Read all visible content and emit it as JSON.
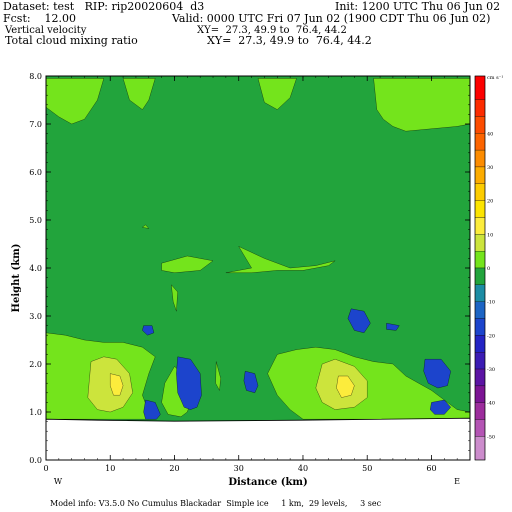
{
  "header": {
    "dataset": "Dataset: test   RIP: rip20020604  d3",
    "init": "Init: 1200 UTC Thu 06 Jun 02",
    "fcst": "Fcst:    12.00",
    "valid": "Valid: 0000 UTC Fri 07 Jun 02 (1900 CDT Thu 06 Jun 02)",
    "field1": "Vertical velocity",
    "field1_xy": "XY=  27.3, 49.9 to  76.4, 44.2",
    "field2": "Total cloud mixing ratio",
    "field2_xy": "XY=  27.3, 49.9 to  76.4, 44.2"
  },
  "footer": "Model info: V3.5.0 No Cumulus Blackadar  Simple ice     1 km,  29 levels,     3 sec",
  "colors": {
    "background_field": "#22a43c",
    "light_green": "#74e41c",
    "yellow_green": "#cce43c",
    "yellow": "#fcec3c",
    "blue": "#1c44cc",
    "terrain": "#ffffff"
  },
  "chart_data": {
    "type": "heatmap",
    "xlabel": "Distance (km)",
    "ylabel": "Height (km)",
    "xlim": [
      0,
      66
    ],
    "ylim": [
      0,
      8
    ],
    "x_ticks": [
      "0",
      "10",
      "20",
      "30",
      "40",
      "50",
      "60"
    ],
    "y_ticks": [
      "0.0",
      "1.0",
      "2.0",
      "3.0",
      "4.0",
      "5.0",
      "6.0",
      "7.0",
      "8.0"
    ],
    "x_end_labels": {
      "left": "W",
      "right": "E"
    },
    "colorbar": {
      "unit": "cm s⁻¹",
      "tick_labels": [
        "40",
        "30",
        "20",
        "10",
        "0",
        "-10",
        "-20",
        "-30",
        "-40",
        "-50"
      ],
      "tick_values": [
        40,
        30,
        20,
        10,
        0,
        -10,
        -20,
        -30,
        -40,
        -50
      ],
      "range": [
        -57,
        57
      ],
      "bands": [
        {
          "from": 50,
          "to": 57,
          "color": "#fc0000"
        },
        {
          "from": 45,
          "to": 50,
          "color": "#fc2c00"
        },
        {
          "from": 40,
          "to": 45,
          "color": "#fc4c00"
        },
        {
          "from": 35,
          "to": 40,
          "color": "#fc6400"
        },
        {
          "from": 30,
          "to": 35,
          "color": "#fc8c00"
        },
        {
          "from": 25,
          "to": 30,
          "color": "#fcac00"
        },
        {
          "from": 20,
          "to": 25,
          "color": "#fccc00"
        },
        {
          "from": 15,
          "to": 20,
          "color": "#fce400"
        },
        {
          "from": 10,
          "to": 15,
          "color": "#fcec3c"
        },
        {
          "from": 5,
          "to": 10,
          "color": "#cce43c"
        },
        {
          "from": 0,
          "to": 5,
          "color": "#74e41c"
        },
        {
          "from": -5,
          "to": 0,
          "color": "#22a43c"
        },
        {
          "from": -10,
          "to": -5,
          "color": "#1c8ca4"
        },
        {
          "from": -15,
          "to": -10,
          "color": "#1c64c4"
        },
        {
          "from": -20,
          "to": -15,
          "color": "#1c44cc"
        },
        {
          "from": -25,
          "to": -20,
          "color": "#2424c4"
        },
        {
          "from": -30,
          "to": -25,
          "color": "#3c1cb4"
        },
        {
          "from": -35,
          "to": -30,
          "color": "#5c14a4"
        },
        {
          "from": -40,
          "to": -35,
          "color": "#7c1494"
        },
        {
          "from": -45,
          "to": -40,
          "color": "#9c2c9c"
        },
        {
          "from": -50,
          "to": -45,
          "color": "#b454b4"
        },
        {
          "from": -57,
          "to": -50,
          "color": "#cc8ccc"
        }
      ]
    },
    "terrain_height_km": 0.85,
    "regions": [
      {
        "level": "light_green",
        "pts": [
          [
            0,
            7.95
          ],
          [
            0,
            7.35
          ],
          [
            2,
            7.15
          ],
          [
            4,
            7.0
          ],
          [
            6,
            7.1
          ],
          [
            8,
            7.5
          ],
          [
            9,
            7.95
          ]
        ]
      },
      {
        "level": "light_green",
        "pts": [
          [
            33,
            7.95
          ],
          [
            34,
            7.45
          ],
          [
            36,
            7.3
          ],
          [
            38,
            7.55
          ],
          [
            39,
            7.95
          ]
        ]
      },
      {
        "level": "light_green",
        "pts": [
          [
            12,
            7.95
          ],
          [
            13,
            7.5
          ],
          [
            15,
            7.3
          ],
          [
            16,
            7.5
          ],
          [
            17,
            7.95
          ]
        ]
      },
      {
        "level": "light_green",
        "pts": [
          [
            51,
            7.95
          ],
          [
            51.5,
            7.3
          ],
          [
            52.5,
            7.1
          ],
          [
            54,
            6.95
          ],
          [
            56,
            6.85
          ],
          [
            60,
            6.9
          ],
          [
            64,
            6.95
          ],
          [
            66,
            7.0
          ],
          [
            66,
            7.95
          ]
        ]
      },
      {
        "level": "light_green",
        "pts": [
          [
            15,
            4.85
          ],
          [
            15.5,
            4.9
          ],
          [
            16,
            4.82
          ]
        ]
      },
      {
        "level": "light_green",
        "pts": [
          [
            30,
            4.45
          ],
          [
            34,
            4.2
          ],
          [
            38,
            4.0
          ],
          [
            42,
            4.05
          ],
          [
            45,
            4.15
          ],
          [
            44,
            4.05
          ],
          [
            40,
            3.95
          ],
          [
            36,
            3.95
          ],
          [
            32,
            3.9
          ],
          [
            29,
            3.9
          ],
          [
            28,
            3.9
          ],
          [
            32,
            4.0
          ]
        ]
      },
      {
        "level": "light_green",
        "pts": [
          [
            18,
            4.1
          ],
          [
            22,
            4.25
          ],
          [
            26,
            4.15
          ],
          [
            24,
            3.95
          ],
          [
            20,
            3.9
          ],
          [
            18,
            3.95
          ]
        ]
      },
      {
        "level": "light_green",
        "pts": [
          [
            19.5,
            3.65
          ],
          [
            20.5,
            3.5
          ],
          [
            20.3,
            3.1
          ],
          [
            19.8,
            3.3
          ]
        ]
      },
      {
        "level": "light_green",
        "pts": [
          [
            0,
            2.65
          ],
          [
            3,
            2.6
          ],
          [
            6,
            2.5
          ],
          [
            9,
            2.45
          ],
          [
            12,
            2.45
          ],
          [
            15,
            2.35
          ],
          [
            17,
            2.15
          ],
          [
            16,
            1.8
          ],
          [
            15,
            1.35
          ],
          [
            16,
            1.0
          ],
          [
            17,
            0.85
          ],
          [
            0,
            0.85
          ]
        ]
      },
      {
        "level": "light_green",
        "pts": [
          [
            20,
            1.95
          ],
          [
            22,
            1.7
          ],
          [
            23,
            1.4
          ],
          [
            22,
            1.0
          ],
          [
            21,
            0.9
          ],
          [
            19,
            0.95
          ],
          [
            18,
            1.2
          ],
          [
            18.5,
            1.6
          ]
        ]
      },
      {
        "level": "light_green",
        "pts": [
          [
            26.5,
            2.05
          ],
          [
            27.2,
            1.7
          ],
          [
            27.0,
            1.45
          ],
          [
            26.4,
            1.6
          ]
        ]
      },
      {
        "level": "light_green",
        "pts": [
          [
            36,
            2.2
          ],
          [
            39,
            2.3
          ],
          [
            42,
            2.35
          ],
          [
            45,
            2.3
          ],
          [
            48,
            2.15
          ],
          [
            51,
            2.05
          ],
          [
            54,
            2.0
          ],
          [
            56,
            1.75
          ],
          [
            58,
            1.6
          ],
          [
            60,
            1.45
          ],
          [
            62,
            1.25
          ],
          [
            64,
            1.05
          ],
          [
            66,
            1.0
          ],
          [
            66,
            0.85
          ],
          [
            40,
            0.85
          ],
          [
            38,
            1.05
          ],
          [
            36,
            1.35
          ],
          [
            34.5,
            1.8
          ]
        ]
      },
      {
        "level": "yellow_green",
        "pts": [
          [
            7,
            2.05
          ],
          [
            9,
            2.15
          ],
          [
            11,
            2.1
          ],
          [
            13,
            1.8
          ],
          [
            13.5,
            1.4
          ],
          [
            12,
            1.1
          ],
          [
            10,
            1.0
          ],
          [
            8,
            1.05
          ],
          [
            6.5,
            1.3
          ],
          [
            6.8,
            1.75
          ]
        ]
      },
      {
        "level": "yellow_green",
        "pts": [
          [
            43,
            2.0
          ],
          [
            45,
            2.1
          ],
          [
            48,
            1.95
          ],
          [
            50,
            1.65
          ],
          [
            50,
            1.3
          ],
          [
            48,
            1.1
          ],
          [
            45,
            1.05
          ],
          [
            43,
            1.2
          ],
          [
            42,
            1.5
          ]
        ]
      },
      {
        "level": "yellow",
        "pts": [
          [
            10,
            1.8
          ],
          [
            11.5,
            1.75
          ],
          [
            12,
            1.55
          ],
          [
            11.5,
            1.35
          ],
          [
            10.5,
            1.35
          ],
          [
            10,
            1.55
          ]
        ]
      },
      {
        "level": "yellow",
        "pts": [
          [
            45.5,
            1.75
          ],
          [
            47,
            1.75
          ],
          [
            48,
            1.55
          ],
          [
            47.5,
            1.35
          ],
          [
            46,
            1.3
          ],
          [
            45.2,
            1.5
          ]
        ]
      },
      {
        "level": "blue",
        "pts": [
          [
            15.2,
            2.8
          ],
          [
            16.5,
            2.8
          ],
          [
            16.8,
            2.65
          ],
          [
            15.8,
            2.6
          ],
          [
            15,
            2.7
          ]
        ]
      },
      {
        "level": "blue",
        "pts": [
          [
            20.5,
            2.15
          ],
          [
            22.5,
            2.1
          ],
          [
            24,
            1.8
          ],
          [
            24.2,
            1.35
          ],
          [
            23.5,
            1.1
          ],
          [
            22.5,
            1.05
          ],
          [
            21.5,
            1.1
          ],
          [
            20.5,
            1.4
          ],
          [
            20.3,
            1.8
          ]
        ]
      },
      {
        "level": "blue",
        "pts": [
          [
            15.5,
            1.25
          ],
          [
            17,
            1.2
          ],
          [
            17.8,
            0.95
          ],
          [
            17.2,
            0.85
          ],
          [
            15.5,
            0.85
          ],
          [
            15.2,
            1.0
          ]
        ]
      },
      {
        "level": "blue",
        "pts": [
          [
            31,
            1.85
          ],
          [
            32.5,
            1.8
          ],
          [
            33,
            1.55
          ],
          [
            32.5,
            1.4
          ],
          [
            31.2,
            1.45
          ],
          [
            30.8,
            1.65
          ]
        ]
      },
      {
        "level": "blue",
        "pts": [
          [
            47.5,
            3.15
          ],
          [
            49.5,
            3.1
          ],
          [
            50.5,
            2.85
          ],
          [
            49.5,
            2.65
          ],
          [
            48,
            2.7
          ],
          [
            47,
            2.95
          ]
        ]
      },
      {
        "level": "blue",
        "pts": [
          [
            53,
            2.85
          ],
          [
            55,
            2.8
          ],
          [
            54.5,
            2.7
          ],
          [
            53,
            2.72
          ]
        ]
      },
      {
        "level": "blue",
        "pts": [
          [
            59,
            2.1
          ],
          [
            61.5,
            2.1
          ],
          [
            63,
            1.85
          ],
          [
            62.5,
            1.55
          ],
          [
            61,
            1.5
          ],
          [
            59.5,
            1.6
          ],
          [
            58.8,
            1.85
          ]
        ]
      },
      {
        "level": "blue",
        "pts": [
          [
            60,
            1.2
          ],
          [
            62,
            1.25
          ],
          [
            63,
            1.1
          ],
          [
            62,
            0.95
          ],
          [
            60.5,
            0.95
          ],
          [
            59.8,
            1.05
          ]
        ]
      }
    ]
  }
}
